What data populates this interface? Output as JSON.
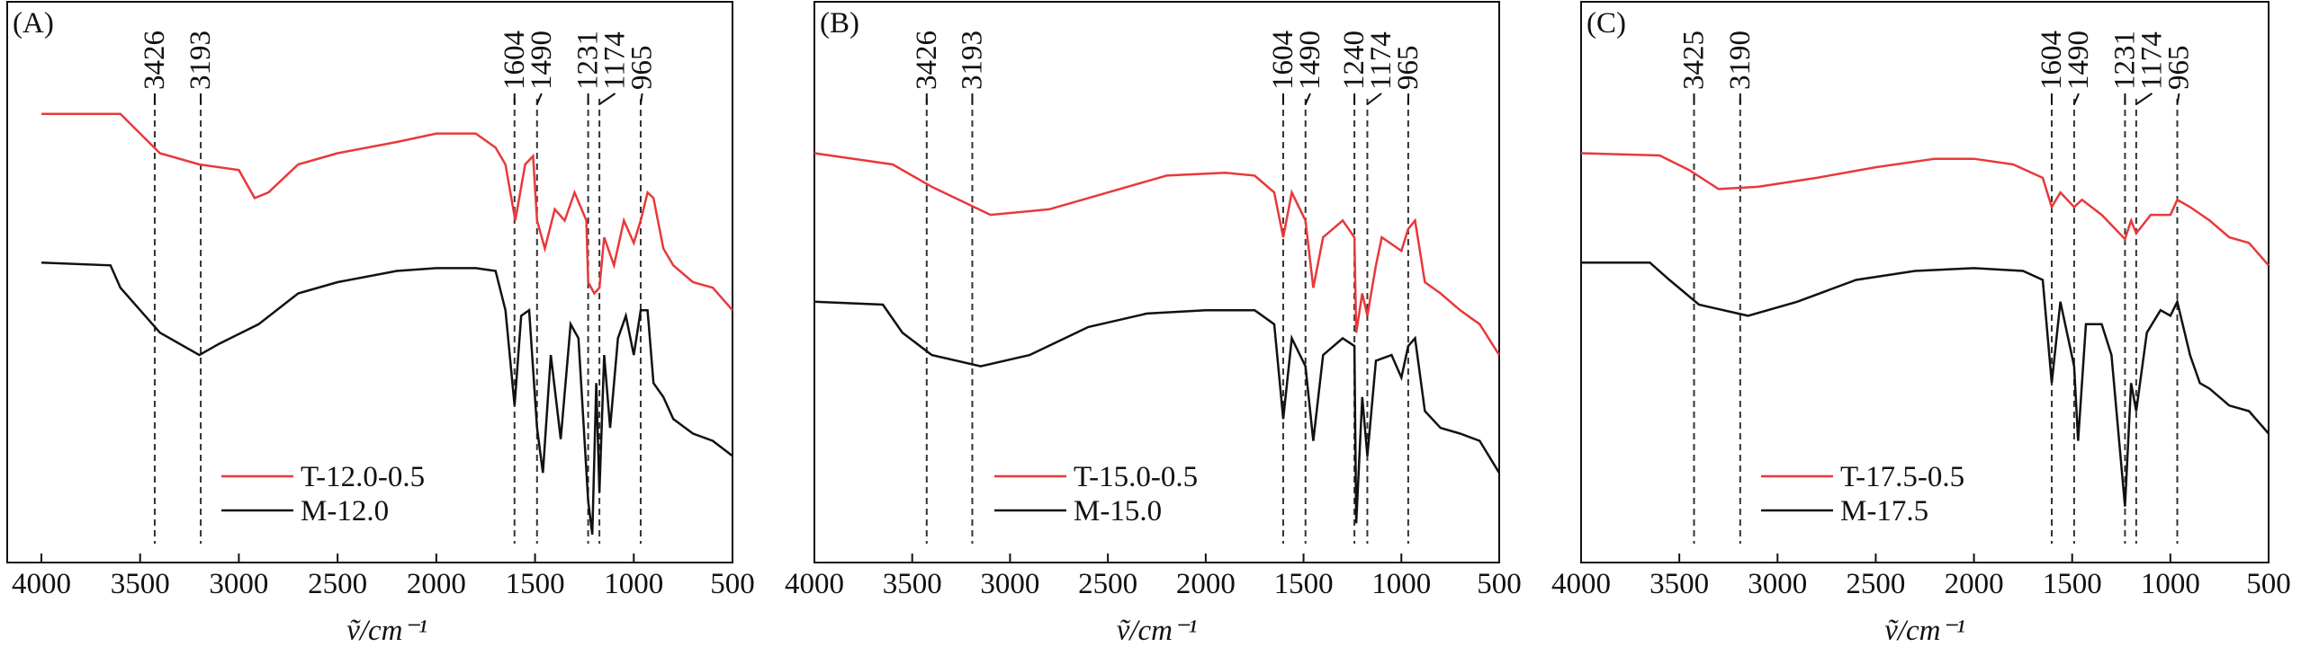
{
  "chart_data": [
    {
      "type": "line",
      "panel_label": "(A)",
      "x_label": "ṽ/cm⁻¹",
      "xlim": [
        4000,
        500
      ],
      "xticks": [
        4000,
        3500,
        3000,
        2500,
        2000,
        1500,
        1000,
        500
      ],
      "ylim": [
        0,
        100
      ],
      "legend": "lower center",
      "peaks": [
        3426,
        3193,
        1604,
        1490,
        1231,
        1174,
        965
      ],
      "series": [
        {
          "name": "T-12.0-0.5",
          "color": "#e8393a",
          "x": [
            4000,
            3600,
            3400,
            3200,
            3000,
            2920,
            2850,
            2700,
            2500,
            2200,
            2000,
            1800,
            1700,
            1650,
            1600,
            1550,
            1510,
            1490,
            1450,
            1400,
            1350,
            1300,
            1240,
            1231,
            1200,
            1174,
            1150,
            1100,
            1050,
            1000,
            965,
            930,
            900,
            850,
            800,
            700,
            600,
            500
          ],
          "values": [
            80,
            80,
            73,
            71,
            70,
            65,
            66,
            71,
            73,
            75,
            76.5,
            76.5,
            74,
            71,
            61,
            71,
            72.5,
            61,
            56,
            63,
            61,
            66,
            61,
            50,
            48,
            49,
            58,
            53,
            61,
            57,
            61,
            66,
            65,
            56,
            53,
            50,
            49,
            45
          ]
        },
        {
          "name": "M-12.0",
          "color": "#111111",
          "x": [
            4000,
            3650,
            3600,
            3400,
            3200,
            3100,
            2900,
            2700,
            2500,
            2200,
            2000,
            1800,
            1700,
            1650,
            1604,
            1570,
            1530,
            1490,
            1460,
            1420,
            1370,
            1320,
            1280,
            1231,
            1210,
            1190,
            1174,
            1150,
            1120,
            1080,
            1040,
            1000,
            965,
            930,
            900,
            850,
            800,
            700,
            600,
            500
          ],
          "values": [
            53.5,
            53,
            49,
            41,
            37,
            39,
            42.5,
            48,
            50,
            52,
            52.5,
            52.5,
            52,
            45,
            28,
            44,
            45,
            24,
            16,
            37,
            22,
            42.5,
            40,
            11,
            5,
            32,
            12.5,
            37,
            24,
            40,
            44,
            37,
            45,
            45,
            32,
            29.5,
            25.6,
            23,
            21.7,
            19
          ]
        }
      ]
    },
    {
      "type": "line",
      "panel_label": "(B)",
      "x_label": "ṽ/cm⁻¹",
      "xlim": [
        4000,
        500
      ],
      "xticks": [
        4000,
        3500,
        3000,
        2500,
        2000,
        1500,
        1000,
        500
      ],
      "ylim": [
        0,
        100
      ],
      "legend": "lower center",
      "peaks": [
        3426,
        3193,
        1604,
        1490,
        1240,
        1174,
        965
      ],
      "series": [
        {
          "name": "T-15.0-0.5",
          "color": "#e8393a",
          "x": [
            4000,
            3600,
            3400,
            3100,
            2800,
            2500,
            2200,
            1900,
            1750,
            1650,
            1604,
            1560,
            1490,
            1450,
            1400,
            1300,
            1240,
            1231,
            1200,
            1174,
            1130,
            1100,
            1000,
            965,
            930,
            880,
            800,
            700,
            600,
            500
          ],
          "values": [
            73,
            71,
            67,
            62,
            63,
            66,
            69,
            69.5,
            69,
            66,
            58,
            66,
            61,
            49,
            58,
            61,
            58,
            41,
            48,
            44,
            53,
            58,
            55.6,
            59.5,
            61,
            50,
            48,
            45,
            42.5,
            37
          ]
        },
        {
          "name": "M-15.0",
          "color": "#111111",
          "x": [
            4000,
            3650,
            3550,
            3400,
            3150,
            2900,
            2600,
            2300,
            2000,
            1750,
            1650,
            1604,
            1560,
            1490,
            1450,
            1400,
            1300,
            1240,
            1231,
            1200,
            1174,
            1130,
            1050,
            1000,
            965,
            930,
            880,
            800,
            700,
            600,
            500
          ],
          "values": [
            46.5,
            46,
            41,
            37,
            35,
            37,
            42,
            44.4,
            45,
            45,
            42.5,
            25.6,
            40,
            35,
            21.7,
            37,
            40,
            38.6,
            7,
            29.5,
            19,
            36,
            37,
            33,
            38.6,
            40,
            27,
            24,
            23,
            21.7,
            16
          ]
        }
      ]
    },
    {
      "type": "line",
      "panel_label": "(C)",
      "x_label": "ṽ/cm⁻¹",
      "xlim": [
        4000,
        500
      ],
      "xticks": [
        4000,
        3500,
        3000,
        2500,
        2000,
        1500,
        1000,
        500
      ],
      "ylim": [
        0,
        100
      ],
      "legend": "lower center",
      "peaks": [
        3425,
        3190,
        1604,
        1490,
        1231,
        1174,
        965
      ],
      "series": [
        {
          "name": "T-17.5-0.5",
          "color": "#e8393a",
          "x": [
            4000,
            3600,
            3450,
            3300,
            3100,
            2800,
            2500,
            2200,
            2000,
            1800,
            1650,
            1604,
            1560,
            1490,
            1450,
            1350,
            1231,
            1200,
            1174,
            1100,
            1000,
            965,
            900,
            800,
            700,
            600,
            500
          ],
          "values": [
            73,
            72.6,
            70,
            66.6,
            67,
            68.6,
            70.5,
            72,
            72,
            71,
            68.6,
            63.4,
            66,
            63.4,
            64.7,
            62,
            57.7,
            61,
            58.7,
            62,
            62,
            64.7,
            63.4,
            61,
            58,
            57,
            53
          ]
        },
        {
          "name": "M-17.5",
          "color": "#111111",
          "x": [
            4000,
            3650,
            3550,
            3400,
            3150,
            2900,
            2600,
            2300,
            2000,
            1750,
            1650,
            1604,
            1560,
            1490,
            1470,
            1430,
            1350,
            1300,
            1231,
            1200,
            1174,
            1120,
            1050,
            1000,
            965,
            900,
            850,
            800,
            700,
            600,
            500
          ],
          "values": [
            53.5,
            53.5,
            50.4,
            46,
            44,
            46.5,
            50.4,
            52,
            52.5,
            52,
            50.4,
            32,
            46.5,
            35,
            21.7,
            42.5,
            42.5,
            37,
            10,
            32,
            27,
            41,
            45,
            44,
            46.5,
            37,
            32,
            31,
            28,
            27,
            23
          ]
        }
      ]
    }
  ]
}
